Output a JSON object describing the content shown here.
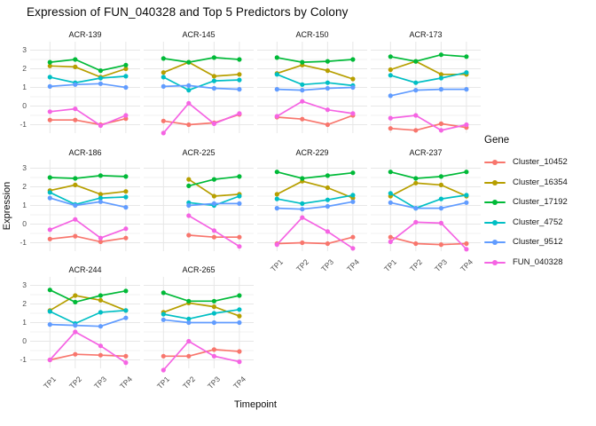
{
  "title": "Expression of FUN_040328 and Top 5 Predictors by Colony",
  "axes": {
    "x_title": "Timepoint",
    "y_title": "Expression",
    "y_ticks": [
      "3",
      "2",
      "1",
      "0",
      "-1"
    ],
    "y_tick_values": [
      3,
      2,
      1,
      0,
      -1
    ]
  },
  "legend": {
    "title": "Gene",
    "position": "right"
  },
  "chart_data": {
    "type": "line",
    "title": "Expression of FUN_040328 and Top 5 Predictors by Colony",
    "xlabel": "Timepoint",
    "ylabel": "Expression",
    "facet_by": "Colony",
    "categories": [
      "TP1",
      "TP2",
      "TP3",
      "TP4"
    ],
    "ylim": [
      -1.55,
      3.45
    ],
    "y_major_ticks": [
      -1,
      0,
      1,
      2,
      3
    ],
    "y_minor_ticks": [
      -0.5,
      0.5,
      1.5,
      2.5
    ],
    "grid": true,
    "legend_title": "Gene",
    "legend_position": "right",
    "genes": [
      {
        "name": "Cluster_10452",
        "color": "#F8766D"
      },
      {
        "name": "Cluster_16354",
        "color": "#B79F00"
      },
      {
        "name": "Cluster_17192",
        "color": "#00BA38"
      },
      {
        "name": "Cluster_4752",
        "color": "#00BFC4"
      },
      {
        "name": "Cluster_9512",
        "color": "#619CFF"
      },
      {
        "name": "FUN_040328",
        "color": "#F564E3"
      }
    ],
    "facets": [
      {
        "colony": "ACR-139",
        "series": [
          [
            -0.75,
            -0.75,
            -1.0,
            -0.68
          ],
          [
            2.15,
            2.1,
            1.55,
            2.0
          ],
          [
            2.35,
            2.5,
            1.9,
            2.2
          ],
          [
            1.55,
            1.25,
            1.5,
            1.6
          ],
          [
            1.05,
            1.15,
            1.2,
            1.0
          ],
          [
            -0.3,
            -0.15,
            -1.05,
            -0.5
          ]
        ]
      },
      {
        "colony": "ACR-145",
        "series": [
          [
            -0.8,
            -1.0,
            -0.9,
            -0.45
          ],
          [
            1.8,
            2.35,
            1.6,
            1.7
          ],
          [
            2.55,
            2.35,
            2.6,
            2.5
          ],
          [
            1.55,
            0.85,
            1.35,
            1.4
          ],
          [
            1.05,
            1.1,
            0.95,
            0.9
          ],
          [
            -1.45,
            0.15,
            -0.95,
            -0.4
          ]
        ]
      },
      {
        "colony": "ACR-150",
        "series": [
          [
            -0.6,
            -0.7,
            -1.0,
            -0.5
          ],
          [
            1.75,
            2.2,
            1.9,
            1.45
          ],
          [
            2.6,
            2.35,
            2.4,
            2.5
          ],
          [
            1.7,
            1.15,
            1.25,
            1.1
          ],
          [
            0.9,
            0.85,
            0.95,
            1.0
          ],
          [
            -0.55,
            0.25,
            -0.2,
            -0.4
          ]
        ]
      },
      {
        "colony": "ACR-173",
        "series": [
          [
            -1.2,
            -1.3,
            -0.95,
            -1.15
          ],
          [
            1.95,
            2.4,
            1.7,
            1.7
          ],
          [
            2.65,
            2.4,
            2.75,
            2.65
          ],
          [
            1.65,
            1.25,
            1.5,
            1.8
          ],
          [
            0.55,
            0.85,
            0.9,
            0.9
          ],
          [
            -0.65,
            -0.5,
            -1.3,
            -1.0
          ]
        ]
      },
      {
        "colony": "ACR-186",
        "series": [
          [
            -0.8,
            -0.65,
            -0.95,
            -0.75
          ],
          [
            1.8,
            2.1,
            1.6,
            1.75
          ],
          [
            2.5,
            2.45,
            2.6,
            2.55
          ],
          [
            1.7,
            1.05,
            1.4,
            1.45
          ],
          [
            1.4,
            1.0,
            1.2,
            0.9
          ],
          [
            -0.3,
            0.25,
            -0.75,
            -0.25
          ]
        ]
      },
      {
        "colony": "ACR-225",
        "series": [
          [
            null,
            -0.6,
            -0.7,
            -0.7
          ],
          [
            null,
            2.4,
            1.5,
            1.6
          ],
          [
            null,
            2.05,
            2.4,
            2.55
          ],
          [
            null,
            1.15,
            1.0,
            1.5
          ],
          [
            null,
            1.0,
            1.1,
            1.1
          ],
          [
            null,
            0.45,
            -0.35,
            -1.2
          ]
        ]
      },
      {
        "colony": "ACR-229",
        "series": [
          [
            -1.05,
            -1.0,
            -1.05,
            -0.7
          ],
          [
            1.6,
            2.3,
            1.95,
            1.4
          ],
          [
            2.8,
            2.45,
            2.6,
            2.75
          ],
          [
            1.35,
            1.1,
            1.3,
            1.55
          ],
          [
            0.85,
            0.8,
            0.95,
            1.2
          ],
          [
            -1.1,
            0.35,
            -0.4,
            -1.3
          ]
        ]
      },
      {
        "colony": "ACR-237",
        "series": [
          [
            -0.7,
            -1.05,
            -1.1,
            -1.05
          ],
          [
            1.5,
            2.2,
            2.1,
            1.5
          ],
          [
            2.8,
            2.45,
            2.55,
            2.8
          ],
          [
            1.65,
            0.85,
            1.35,
            1.55
          ],
          [
            1.15,
            0.85,
            0.85,
            1.15
          ],
          [
            -0.95,
            0.1,
            0.05,
            -1.35
          ]
        ]
      },
      {
        "colony": "ACR-244",
        "series": [
          [
            -1.0,
            -0.7,
            -0.75,
            -0.8
          ],
          [
            1.65,
            2.45,
            2.2,
            1.65
          ],
          [
            2.75,
            2.1,
            2.45,
            2.7
          ],
          [
            1.6,
            0.95,
            1.55,
            1.65
          ],
          [
            0.9,
            0.85,
            0.8,
            1.25
          ],
          [
            -1.0,
            0.5,
            -0.25,
            -1.15
          ]
        ]
      },
      {
        "colony": "ACR-265",
        "series": [
          [
            -0.8,
            -0.8,
            -0.45,
            -0.55
          ],
          [
            1.55,
            2.05,
            1.85,
            1.35
          ],
          [
            2.6,
            2.15,
            2.15,
            2.45
          ],
          [
            1.45,
            1.2,
            1.5,
            1.7
          ],
          [
            1.15,
            1.0,
            1.0,
            1.0
          ],
          [
            -1.55,
            0.0,
            -0.8,
            -1.1
          ]
        ]
      }
    ]
  }
}
